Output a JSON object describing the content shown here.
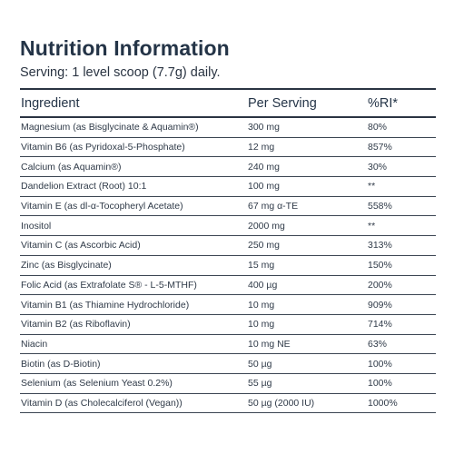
{
  "header": {
    "title": "Nutrition Information",
    "serving": "Serving: 1 level scoop (7.7g) daily."
  },
  "table": {
    "columns": [
      "Ingredient",
      "Per Serving",
      "%RI*"
    ],
    "rows": [
      [
        "Magnesium (as Bisglycinate & Aquamin®)",
        "300 mg",
        "80%"
      ],
      [
        "Vitamin B6 (as Pyridoxal-5-Phosphate)",
        "12 mg",
        "857%"
      ],
      [
        "Calcium (as Aquamin®)",
        "240 mg",
        "30%"
      ],
      [
        "Dandelion Extract (Root) 10:1",
        "100 mg",
        "**"
      ],
      [
        "Vitamin E (as dl-α-Tocopheryl Acetate)",
        "67 mg α-TE",
        "558%"
      ],
      [
        "Inositol",
        "2000 mg",
        "**"
      ],
      [
        "Vitamin C (as Ascorbic Acid)",
        "250 mg",
        "313%"
      ],
      [
        "Zinc (as Bisglycinate)",
        "15 mg",
        "150%"
      ],
      [
        "Folic Acid (as Extrafolate S® - L-5-MTHF)",
        "400 µg",
        "200%"
      ],
      [
        "Vitamin B1 (as Thiamine Hydrochloride)",
        "10 mg",
        "909%"
      ],
      [
        "Vitamin B2 (as Riboflavin)",
        "10 mg",
        "714%"
      ],
      [
        "Niacin",
        "10 mg NE",
        "63%"
      ],
      [
        "Biotin (as D-Biotin)",
        "50 µg",
        "100%"
      ],
      [
        "Selenium (as Selenium Yeast 0.2%)",
        "55 µg",
        "100%"
      ],
      [
        "Vitamin D (as Cholecalciferol (Vegan))",
        "50 µg (2000 IU)",
        "1000%"
      ]
    ]
  }
}
